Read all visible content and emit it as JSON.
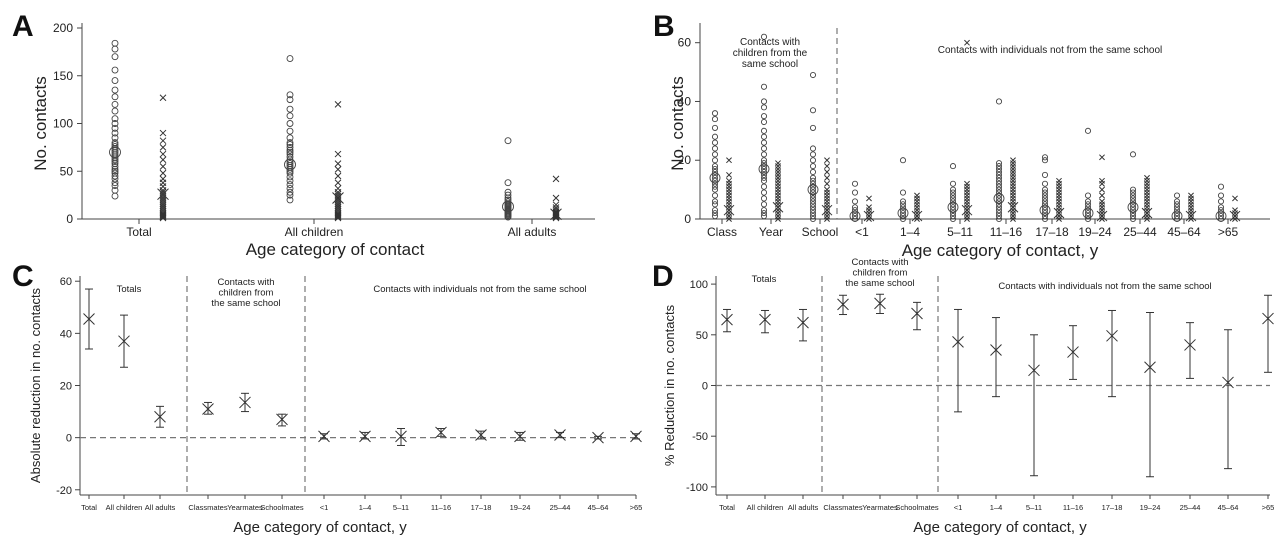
{
  "chart_data": [
    {
      "panel": "A",
      "type": "scatter",
      "ylabel": "No. contacts",
      "xlabel": "Age category of contact",
      "ylim": [
        0,
        200
      ],
      "yticks": [
        0,
        50,
        100,
        150,
        200
      ],
      "categories": [
        "Total",
        "All children",
        "All adults"
      ],
      "series": [
        {
          "marker": "circle",
          "values": [
            [
              24,
              30,
              35,
              38,
              42,
              45,
              48,
              50,
              52,
              55,
              58,
              60,
              62,
              64,
              66,
              68,
              70,
              72,
              74,
              76,
              78,
              80,
              85,
              90,
              95,
              100,
              105,
              113,
              120,
              128,
              135,
              145,
              156,
              170,
              178,
              184
            ],
            [
              20,
              25,
              28,
              32,
              36,
              40,
              44,
              48,
              50,
              52,
              54,
              56,
              58,
              60,
              62,
              65,
              68,
              70,
              72,
              75,
              78,
              80,
              85,
              92,
              100,
              108,
              115,
              125,
              130,
              168
            ],
            [
              2,
              3,
              4,
              5,
              6,
              7,
              8,
              9,
              10,
              11,
              12,
              13,
              14,
              15,
              16,
              18,
              20,
              22,
              25,
              28,
              38,
              82
            ]
          ]
        },
        {
          "marker": "x",
          "values": [
            [
              1,
              2,
              3,
              4,
              5,
              6,
              8,
              10,
              12,
              14,
              16,
              18,
              20,
              22,
              24,
              26,
              28,
              30,
              34,
              38,
              42,
              48,
              55,
              62,
              68,
              75,
              82,
              90,
              127
            ],
            [
              1,
              2,
              3,
              4,
              5,
              6,
              8,
              10,
              12,
              14,
              16,
              18,
              20,
              22,
              24,
              26,
              28,
              32,
              38,
              45,
              52,
              58,
              68,
              120
            ],
            [
              1,
              2,
              3,
              4,
              5,
              6,
              7,
              8,
              10,
              12,
              15,
              22,
              42
            ]
          ]
        }
      ],
      "medians": [
        [
          70,
          26
        ],
        [
          57,
          22
        ],
        [
          13,
          5
        ]
      ]
    },
    {
      "panel": "B",
      "type": "scatter",
      "ylabel": "No. contacts",
      "xlabel": "Age category of contact, y",
      "ylim": [
        0,
        65
      ],
      "yticks": [
        0,
        20,
        40,
        60
      ],
      "categories": [
        "Class",
        "Year",
        "School",
        "<1",
        "1–4",
        "5–11",
        "11–16",
        "17–18",
        "19–24",
        "25–44",
        "45–64",
        ">65"
      ],
      "group_labels": [
        "Contacts with\nchildren from the\nsame school",
        "Contacts with individuals not from the same school"
      ],
      "series": [
        {
          "marker": "circle",
          "values": [
            [
              1,
              2,
              3,
              5,
              6,
              8,
              10,
              11,
              12,
              13,
              14,
              15,
              16,
              17,
              18,
              20,
              22,
              24,
              26,
              28,
              31,
              34,
              36
            ],
            [
              1,
              2,
              3,
              5,
              7,
              9,
              11,
              13,
              14,
              15,
              16,
              17,
              18,
              19,
              20,
              22,
              24,
              26,
              28,
              30,
              33,
              35,
              38,
              40,
              45,
              62
            ],
            [
              0,
              1,
              2,
              3,
              4,
              5,
              6,
              7,
              8,
              9,
              10,
              11,
              12,
              13,
              14,
              16,
              18,
              20,
              22,
              24,
              31,
              37,
              49
            ],
            [
              0,
              1,
              2,
              3,
              4,
              6,
              9,
              12
            ],
            [
              0,
              1,
              2,
              3,
              4,
              5,
              6,
              9,
              20
            ],
            [
              0,
              1,
              2,
              3,
              4,
              5,
              6,
              7,
              8,
              9,
              10,
              12,
              18
            ],
            [
              0,
              1,
              2,
              3,
              4,
              5,
              6,
              7,
              8,
              9,
              10,
              11,
              12,
              13,
              14,
              15,
              16,
              17,
              18,
              19,
              40
            ],
            [
              0,
              1,
              2,
              3,
              4,
              5,
              6,
              7,
              8,
              9,
              10,
              12,
              15,
              20,
              21
            ],
            [
              0,
              1,
              2,
              3,
              4,
              5,
              6,
              8,
              30
            ],
            [
              0,
              1,
              2,
              3,
              4,
              5,
              6,
              7,
              8,
              9,
              10,
              22
            ],
            [
              0,
              1,
              2,
              3,
              4,
              5,
              6,
              8
            ],
            [
              0,
              1,
              2,
              3,
              4,
              6,
              8,
              11
            ]
          ]
        },
        {
          "marker": "x",
          "values": [
            [
              0,
              1,
              2,
              3,
              4,
              5,
              6,
              7,
              8,
              9,
              10,
              11,
              12,
              13,
              15,
              20
            ],
            [
              0,
              1,
              2,
              3,
              4,
              5,
              6,
              7,
              8,
              9,
              10,
              11,
              12,
              13,
              14,
              15,
              16,
              17,
              18,
              19
            ],
            [
              0,
              1,
              2,
              3,
              4,
              5,
              6,
              7,
              8,
              9,
              10,
              12,
              14,
              16,
              18,
              20
            ],
            [
              0,
              1,
              2,
              3,
              4,
              7
            ],
            [
              0,
              1,
              2,
              3,
              4,
              5,
              6,
              7,
              8
            ],
            [
              0,
              1,
              2,
              3,
              4,
              5,
              6,
              7,
              8,
              9,
              10,
              11,
              12,
              60
            ],
            [
              0,
              1,
              2,
              3,
              4,
              5,
              6,
              7,
              8,
              9,
              10,
              11,
              12,
              13,
              14,
              15,
              16,
              17,
              18,
              19,
              20
            ],
            [
              0,
              1,
              2,
              3,
              4,
              5,
              6,
              7,
              8,
              9,
              10,
              11,
              12,
              13
            ],
            [
              0,
              1,
              2,
              3,
              4,
              5,
              6,
              8,
              10,
              12,
              13,
              21
            ],
            [
              0,
              1,
              2,
              3,
              4,
              5,
              6,
              7,
              8,
              9,
              10,
              11,
              12,
              13,
              14
            ],
            [
              0,
              1,
              2,
              3,
              4,
              5,
              6,
              7,
              8
            ],
            [
              0,
              1,
              2,
              3,
              7
            ]
          ]
        }
      ],
      "medians": [
        [
          14,
          3
        ],
        [
          17,
          4
        ],
        [
          10,
          3
        ],
        [
          1,
          1
        ],
        [
          2,
          1
        ],
        [
          4,
          3
        ],
        [
          7,
          4
        ],
        [
          3,
          2
        ],
        [
          2,
          1
        ],
        [
          4,
          2
        ],
        [
          1,
          1
        ],
        [
          1,
          1
        ]
      ]
    },
    {
      "panel": "C",
      "type": "errorbar",
      "ylabel": "Absolute reduction in no. contacts",
      "xlabel": "Age category of contact, y",
      "ylim": [
        -22,
        62
      ],
      "yticks": [
        -20,
        0,
        20,
        40,
        60
      ],
      "categories": [
        "Total",
        "All children",
        "All adults",
        "Classmates",
        "Yearmates",
        "Schoolmates",
        "<1",
        "1–4",
        "5–11",
        "11–16",
        "17–18",
        "19–24",
        "25–44",
        "45–64",
        ">65"
      ],
      "group_labels": [
        "Totals",
        "Contacts with\nchildren from\nthe same school",
        "Contacts with individuals not from the same school"
      ],
      "values": [
        45.5,
        37,
        8,
        11,
        13.5,
        7,
        0.5,
        0.5,
        0.5,
        2,
        1,
        0.5,
        1,
        0,
        0.5
      ],
      "lower": [
        34,
        27,
        4,
        9,
        10,
        4.5,
        -0.5,
        -0.5,
        -3,
        0.5,
        -0.5,
        -1,
        0,
        -0.5,
        -0.5
      ],
      "upper": [
        57,
        47,
        12,
        13.5,
        17,
        9,
        1.5,
        2,
        3.5,
        3.5,
        2.5,
        2,
        2,
        0.5,
        1.5
      ]
    },
    {
      "panel": "D",
      "type": "errorbar",
      "ylabel": "% Reduction in no. contacts",
      "xlabel": "Age category of contact, y",
      "ylim": [
        -108,
        108
      ],
      "yticks": [
        -100,
        -50,
        0,
        50,
        100
      ],
      "categories": [
        "Total",
        "All children",
        "All adults",
        "Classmates",
        "Yearmates",
        "Schoolmates",
        "<1",
        "1–4",
        "5–11",
        "11–16",
        "17–18",
        "19–24",
        "25–44",
        "45–64",
        ">65"
      ],
      "group_labels": [
        "Totals",
        "Contacts with\nchildren from\nthe same school",
        "Contacts with individuals not from the same school"
      ],
      "values": [
        65,
        65,
        62,
        80,
        81,
        71,
        43,
        35,
        15,
        33,
        49,
        18,
        40,
        3,
        66
      ],
      "lower": [
        53,
        52,
        44,
        70,
        71,
        55,
        -26,
        -11,
        -89,
        6,
        -11,
        -90,
        7,
        -82,
        13
      ],
      "upper": [
        75,
        74,
        75,
        89,
        90,
        82,
        75,
        67,
        50,
        59,
        74,
        72,
        62,
        55,
        89
      ]
    }
  ]
}
